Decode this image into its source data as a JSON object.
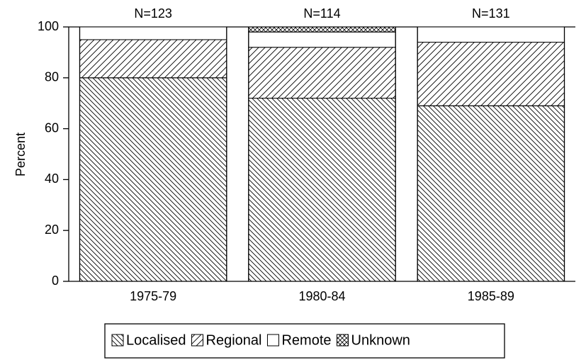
{
  "chart_data": {
    "type": "stacked_bar",
    "categories": [
      "1975-79",
      "1980-84",
      "1985-89"
    ],
    "annotations": [
      "N=123",
      "N=114",
      "N=131"
    ],
    "y_label": "Percent",
    "series": [
      {
        "name": "Localised",
        "color": "#000000",
        "pattern": "backslash",
        "values": [
          80,
          72,
          69
        ]
      },
      {
        "name": "Regional",
        "color": "#000000",
        "pattern": "slash",
        "values": [
          15,
          20,
          25
        ]
      },
      {
        "name": "Remote",
        "color": "#000000",
        "pattern": "none",
        "values": [
          5,
          6,
          6
        ]
      },
      {
        "name": "Unknown",
        "color": "#000000",
        "pattern": "cross",
        "values": [
          0,
          2,
          0
        ]
      }
    ],
    "ylim": [
      0,
      100
    ],
    "yticks": [
      0,
      20,
      40,
      60,
      80,
      100
    ],
    "legend": "bottom"
  }
}
